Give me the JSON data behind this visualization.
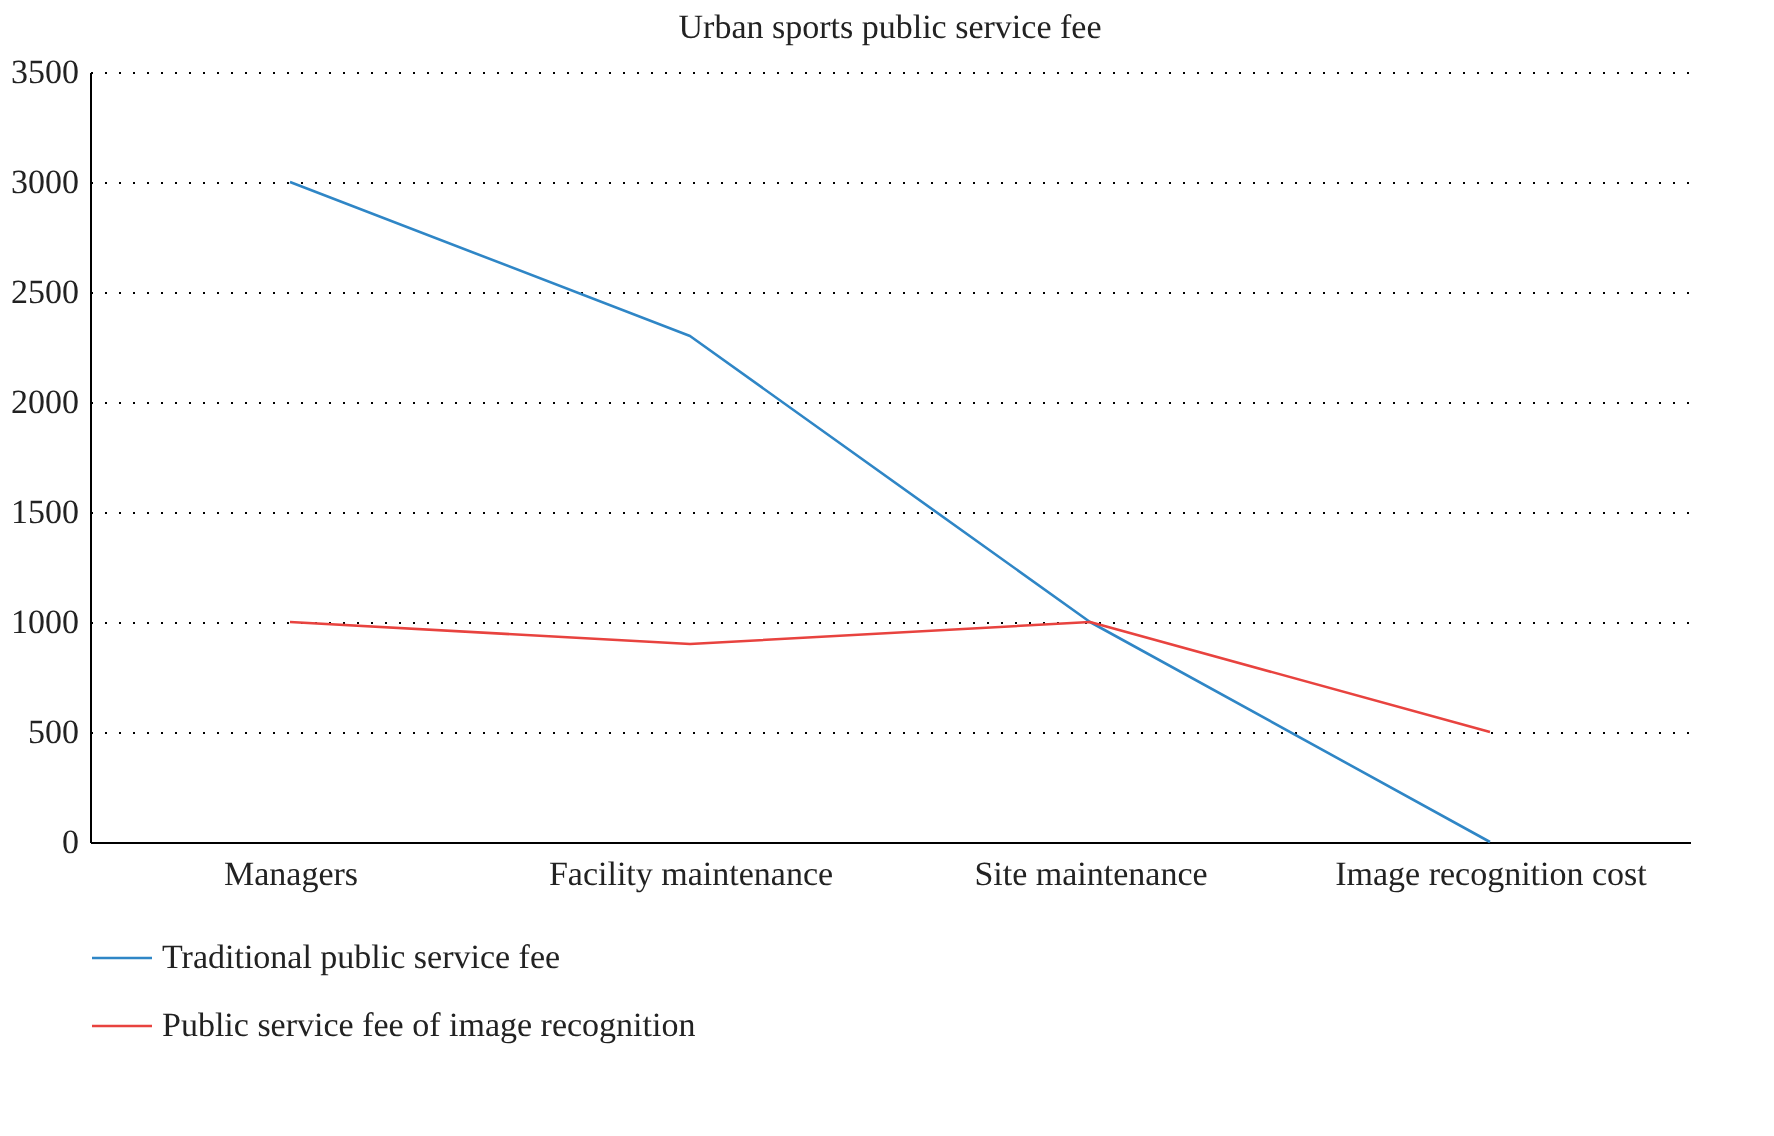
{
  "chart_data": {
    "type": "line",
    "title": "Urban sports public service fee",
    "categories": [
      "Managers",
      "Facility maintenance",
      "Site maintenance",
      "Image recognition cost"
    ],
    "series": [
      {
        "name": "Traditional public service fee",
        "color": "#2f86c6",
        "values": [
          3000,
          2300,
          1000,
          0
        ]
      },
      {
        "name": "Public service fee of image recognition",
        "color": "#e8433f",
        "values": [
          1000,
          900,
          1000,
          500
        ]
      }
    ],
    "ylim": [
      0,
      3500
    ],
    "yticks": [
      0,
      500,
      1000,
      1500,
      2000,
      2500,
      3000,
      3500
    ],
    "grid": "y",
    "legend": "bottom",
    "marker": "none",
    "line_style": "solid"
  }
}
